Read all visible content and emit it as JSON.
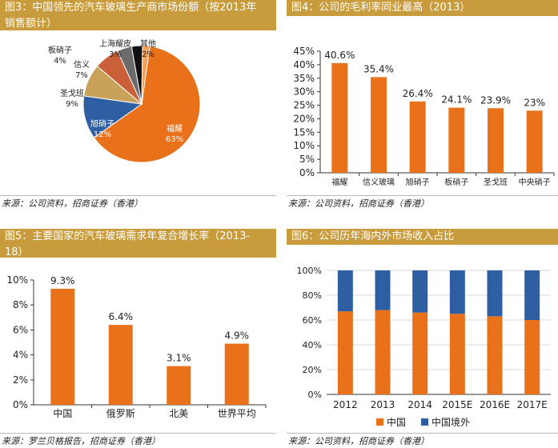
{
  "charts": [
    {
      "header": "图3：中国领先的汽车玻璃生产商市场份额（按2013年销售额计）",
      "header_line1": "图3：中国领先的汽车玻璃生产商市场份额（按2013年",
      "header_line2": "销售额计）",
      "source": "来源：公司资料，招商证券（香港）"
    },
    {
      "header": "图4：公司的毛利率同业最高（2013）",
      "source": "来源：公司资料，招商证券（香港）"
    },
    {
      "header": "图5：主要国家的汽车玻璃需求年复合增长率（2013-18）",
      "header_line1": "图5：主要国家的汽车玻璃需求年复合增长率（2013-",
      "header_line2": "18）",
      "source": "来源：罗兰贝格报告，招商证券（香港）"
    },
    {
      "header": "图6：公司历年海内外市场收入占比",
      "source": "来源：公司资料，招商证券（香港）"
    }
  ],
  "chart_data": [
    {
      "type": "pie",
      "title": "图3：中国领先的汽车玻璃生产商市场份额（按2013年销售额计）",
      "categories": [
        "福耀",
        "旭硝子",
        "圣戈班",
        "信义",
        "板硝子",
        "上海耀皮",
        "其他"
      ],
      "values": [
        63,
        12,
        9,
        7,
        4,
        3,
        2
      ],
      "labels": [
        "63%",
        "12%",
        "9%",
        "7%",
        "4%",
        "3%",
        "2%"
      ],
      "colors": [
        "#e8711a",
        "#2e5fa2",
        "#c9a25a",
        "#c9603a",
        "#6b6b6b",
        "#111111",
        "#f2a05a"
      ]
    },
    {
      "type": "bar",
      "title": "图4：公司的毛利率同业最高（2013）",
      "categories": [
        "福耀",
        "信义玻璃",
        "旭硝子",
        "板硝子",
        "圣戈班",
        "中央硝子"
      ],
      "values": [
        40.6,
        35.4,
        26.4,
        24.1,
        23.9,
        23.0
      ],
      "value_labels": [
        "40.6%",
        "35.4%",
        "26.4%",
        "24.1%",
        "23.9%",
        "23%"
      ],
      "ylim": [
        0,
        45
      ],
      "yticks": [
        "0%",
        "5%",
        "10%",
        "15%",
        "20%",
        "25%",
        "30%",
        "35%",
        "40%",
        "45%"
      ],
      "color": "#e8711a"
    },
    {
      "type": "bar",
      "title": "图5：主要国家的汽车玻璃需求年复合增长率（2013-18）",
      "categories": [
        "中国",
        "俄罗斯",
        "北美",
        "世界平均"
      ],
      "values": [
        9.3,
        6.4,
        3.1,
        4.9
      ],
      "value_labels": [
        "9.3%",
        "6.4%",
        "3.1%",
        "4.9%"
      ],
      "ylim": [
        0,
        10
      ],
      "yticks": [
        "0%",
        "2%",
        "4%",
        "6%",
        "8%",
        "10%"
      ],
      "color": "#e8711a"
    },
    {
      "type": "bar",
      "stacked": true,
      "title": "图6：公司历年海内外市场收入占比",
      "categories": [
        "2012",
        "2013",
        "2014",
        "2015E",
        "2016E",
        "2017E"
      ],
      "series": [
        {
          "name": "中国",
          "values": [
            67,
            68,
            66,
            65,
            63,
            60
          ],
          "color": "#e8711a"
        },
        {
          "name": "中国境外",
          "values": [
            33,
            32,
            34,
            35,
            37,
            40
          ],
          "color": "#2e5fa2"
        }
      ],
      "ylim": [
        0,
        100
      ],
      "yticks": [
        "0%",
        "20%",
        "40%",
        "60%",
        "80%",
        "100%"
      ],
      "legend": "bottom"
    }
  ]
}
